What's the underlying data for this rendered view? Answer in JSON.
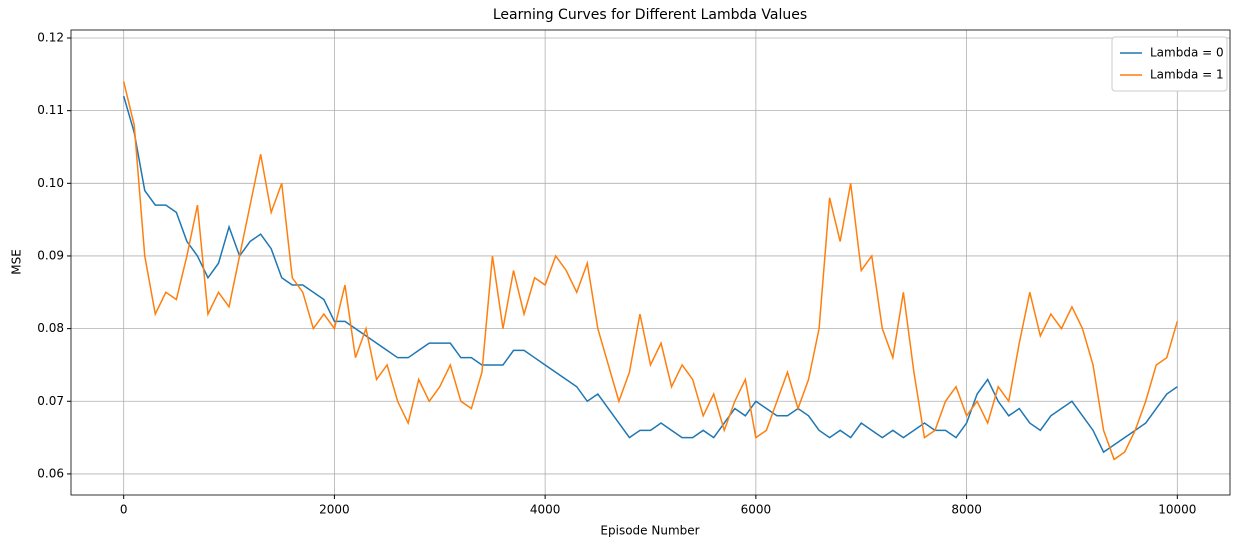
{
  "chart_data": {
    "type": "line",
    "title": "Learning Curves for Different Lambda Values",
    "x_label": "Episode Number",
    "y_label": "MSE",
    "x": [
      0,
      100,
      200,
      300,
      400,
      500,
      600,
      700,
      800,
      900,
      1000,
      1100,
      1200,
      1300,
      1400,
      1500,
      1600,
      1700,
      1800,
      1900,
      2000,
      2100,
      2200,
      2300,
      2400,
      2500,
      2600,
      2700,
      2800,
      2900,
      3000,
      3100,
      3200,
      3300,
      3400,
      3500,
      3600,
      3700,
      3800,
      3900,
      4000,
      4100,
      4200,
      4300,
      4400,
      4500,
      4600,
      4700,
      4800,
      4900,
      5000,
      5100,
      5200,
      5300,
      5400,
      5500,
      5600,
      5700,
      5800,
      5900,
      6000,
      6100,
      6200,
      6300,
      6400,
      6500,
      6600,
      6700,
      6800,
      6900,
      7000,
      7100,
      7200,
      7300,
      7400,
      7500,
      7600,
      7700,
      7800,
      7900,
      8000,
      8100,
      8200,
      8300,
      8400,
      8500,
      8600,
      8700,
      8800,
      8900,
      9000,
      9100,
      9200,
      9300,
      9400,
      9500,
      9600,
      9700,
      9800,
      9900,
      10000
    ],
    "series": [
      {
        "name": "Lambda = 0",
        "color": "#1f77b4",
        "values": [
          0.112,
          0.107,
          0.099,
          0.097,
          0.097,
          0.096,
          0.092,
          0.09,
          0.087,
          0.089,
          0.094,
          0.09,
          0.092,
          0.093,
          0.091,
          0.087,
          0.086,
          0.086,
          0.085,
          0.084,
          0.081,
          0.081,
          0.08,
          0.079,
          0.078,
          0.077,
          0.076,
          0.076,
          0.077,
          0.078,
          0.078,
          0.078,
          0.076,
          0.076,
          0.075,
          0.075,
          0.075,
          0.077,
          0.077,
          0.076,
          0.075,
          0.074,
          0.073,
          0.072,
          0.07,
          0.071,
          0.069,
          0.067,
          0.065,
          0.066,
          0.066,
          0.067,
          0.066,
          0.065,
          0.065,
          0.066,
          0.065,
          0.067,
          0.069,
          0.068,
          0.07,
          0.069,
          0.068,
          0.068,
          0.069,
          0.068,
          0.066,
          0.065,
          0.066,
          0.065,
          0.067,
          0.066,
          0.065,
          0.066,
          0.065,
          0.066,
          0.067,
          0.066,
          0.066,
          0.065,
          0.067,
          0.071,
          0.073,
          0.07,
          0.068,
          0.069,
          0.067,
          0.066,
          0.068,
          0.069,
          0.07,
          0.068,
          0.066,
          0.063,
          0.064,
          0.065,
          0.066,
          0.067,
          0.069,
          0.071,
          0.072
        ]
      },
      {
        "name": "Lambda = 1",
        "color": "#ff7f0e",
        "values": [
          0.114,
          0.108,
          0.09,
          0.082,
          0.085,
          0.084,
          0.09,
          0.097,
          0.082,
          0.085,
          0.083,
          0.09,
          0.097,
          0.104,
          0.096,
          0.1,
          0.087,
          0.085,
          0.08,
          0.082,
          0.08,
          0.086,
          0.076,
          0.08,
          0.073,
          0.075,
          0.07,
          0.067,
          0.073,
          0.07,
          0.072,
          0.075,
          0.07,
          0.069,
          0.074,
          0.09,
          0.08,
          0.088,
          0.082,
          0.087,
          0.086,
          0.09,
          0.088,
          0.085,
          0.089,
          0.08,
          0.075,
          0.07,
          0.074,
          0.082,
          0.075,
          0.078,
          0.072,
          0.075,
          0.073,
          0.068,
          0.071,
          0.066,
          0.07,
          0.073,
          0.065,
          0.066,
          0.07,
          0.074,
          0.069,
          0.073,
          0.08,
          0.098,
          0.092,
          0.1,
          0.088,
          0.09,
          0.08,
          0.076,
          0.085,
          0.074,
          0.065,
          0.066,
          0.07,
          0.072,
          0.068,
          0.07,
          0.067,
          0.072,
          0.07,
          0.078,
          0.085,
          0.079,
          0.082,
          0.08,
          0.083,
          0.08,
          0.075,
          0.066,
          0.062,
          0.063,
          0.066,
          0.07,
          0.075,
          0.076,
          0.081
        ]
      }
    ],
    "xlim": [
      -500,
      10500
    ],
    "ylim": [
      0.0571,
      0.1211
    ],
    "xticks": [
      0,
      2000,
      4000,
      6000,
      8000,
      10000
    ],
    "yticks": [
      0.06,
      0.07,
      0.08,
      0.09,
      {
        "value": 0.1,
        "label": "0.10"
      },
      0.11,
      0.12
    ],
    "grid": true,
    "legend": "upper right"
  }
}
